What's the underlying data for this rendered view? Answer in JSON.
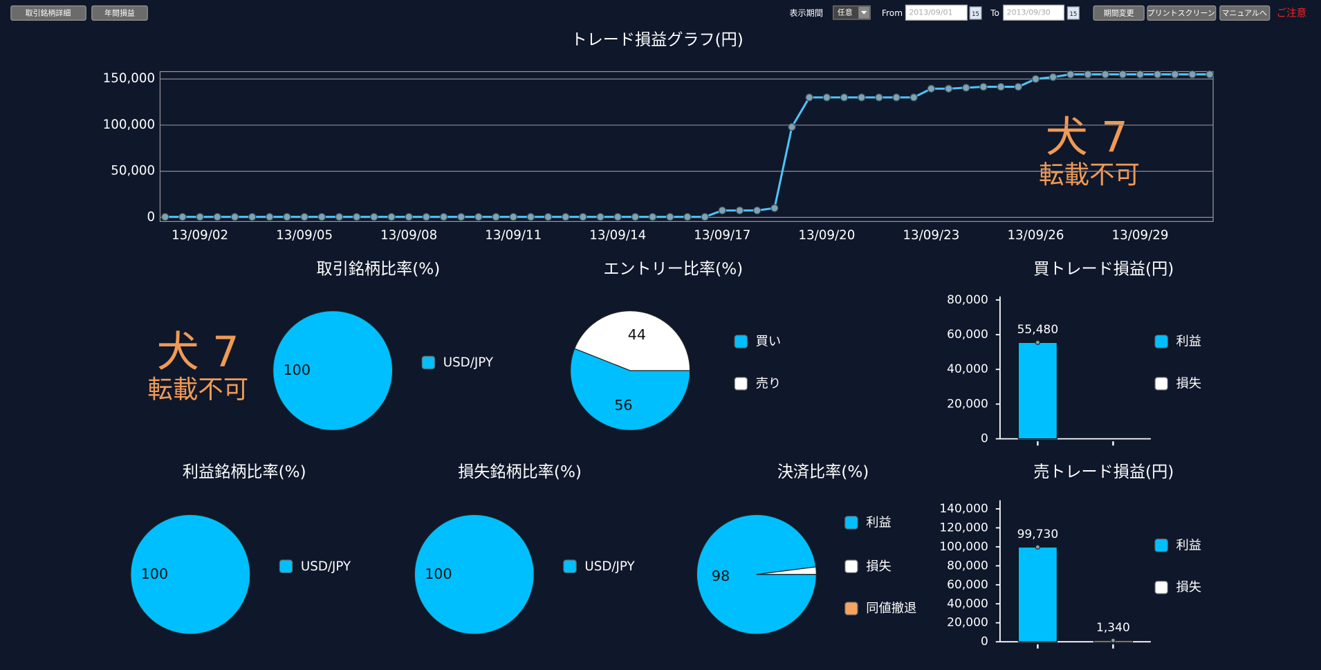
{
  "toolbar": {
    "buttons_left": [
      "取引銘柄詳細",
      "年間損益"
    ],
    "period_label": "表示期間",
    "period_select": "任意",
    "from_label": "From",
    "from_date": "2013/09/01",
    "to_label": "To",
    "to_date": "2013/09/30",
    "calendar_day": "15",
    "buttons_right": [
      "期間変更",
      "プリントスクリーン",
      "マニュアルへ"
    ],
    "notice": "ご注意"
  },
  "watermark": {
    "mark": "犬 7",
    "text": "転載不可"
  },
  "chart_data": [
    {
      "type": "line",
      "title": "トレード損益グラフ(円)",
      "categories": [
        null,
        null,
        "13/09/02",
        null,
        null,
        null,
        null,
        null,
        "13/09/05",
        null,
        null,
        null,
        null,
        null,
        "13/09/08",
        null,
        null,
        null,
        null,
        null,
        "13/09/11",
        null,
        null,
        null,
        null,
        null,
        "13/09/14",
        null,
        null,
        null,
        null,
        null,
        "13/09/17",
        null,
        null,
        null,
        null,
        null,
        "13/09/20",
        null,
        null,
        null,
        null,
        null,
        "13/09/23",
        null,
        null,
        null,
        null,
        null,
        "13/09/26",
        null,
        null,
        null,
        null,
        null,
        "13/09/29",
        null,
        null,
        null,
        null
      ],
      "values": [
        500,
        500,
        500,
        500,
        500,
        500,
        500,
        500,
        500,
        500,
        500,
        500,
        500,
        500,
        500,
        500,
        500,
        500,
        500,
        500,
        500,
        500,
        500,
        500,
        500,
        500,
        500,
        500,
        500,
        500,
        500,
        500,
        7500,
        7500,
        7500,
        10000,
        98000,
        130000,
        130000,
        130000,
        130000,
        130000,
        130000,
        130000,
        139500,
        139500,
        140500,
        141500,
        141500,
        141500,
        150000,
        152000,
        155000,
        155000,
        155000,
        155000,
        155000,
        155000,
        155000,
        155000,
        155000
      ],
      "color": "#4fc3f7",
      "ylim": [
        -4500,
        158000
      ],
      "yticks": [
        0,
        {
          "value": 50000,
          "label": "50,000"
        },
        {
          "value": 100000,
          "label": "100,000"
        },
        {
          "value": 150000,
          "label": "150,000"
        }
      ],
      "grid": true
    },
    {
      "type": "pie",
      "title": "取引銘柄比率(%)",
      "categories": [
        "USD/JPY"
      ],
      "values": [
        100
      ],
      "colors": [
        "#00bfff"
      ]
    },
    {
      "type": "pie",
      "title": "エントリー比率(%)",
      "categories": [
        "買い",
        "売り"
      ],
      "values": [
        56,
        44
      ],
      "colors": [
        "#00bfff",
        "#ffffff"
      ]
    },
    {
      "type": "bar",
      "title": "買トレード損益(円)",
      "categories": [
        null,
        null
      ],
      "series": [
        {
          "name": "利益",
          "color": "#00bfff",
          "values": [
            55480,
            null
          ],
          "value_labels": [
            "55,480",
            null
          ]
        },
        {
          "name": "損失",
          "color": "#ffffff",
          "values": [
            null,
            null
          ]
        }
      ],
      "ylim": [
        0,
        82000
      ],
      "yticks": [
        0,
        {
          "value": 20000,
          "label": "20,000"
        },
        {
          "value": 40000,
          "label": "40,000"
        },
        {
          "value": 60000,
          "label": "60,000"
        },
        {
          "value": 80000,
          "label": "80,000"
        }
      ]
    },
    {
      "type": "pie",
      "title": "利益銘柄比率(%)",
      "categories": [
        "USD/JPY"
      ],
      "values": [
        100
      ],
      "colors": [
        "#00bfff"
      ]
    },
    {
      "type": "pie",
      "title": "損失銘柄比率(%)",
      "categories": [
        "USD/JPY"
      ],
      "values": [
        100
      ],
      "colors": [
        "#00bfff"
      ]
    },
    {
      "type": "pie",
      "title": "決済比率(%)",
      "categories": [
        "利益",
        "損失",
        "同値撤退"
      ],
      "values": [
        98,
        2,
        0
      ],
      "colors": [
        "#00bfff",
        "#ffffff",
        "#f4a460"
      ]
    },
    {
      "type": "bar",
      "title": "売トレード損益(円)",
      "categories": [
        null,
        null
      ],
      "series": [
        {
          "name": "利益",
          "color": "#00bfff",
          "values": [
            99730,
            null
          ],
          "value_labels": [
            "99,730",
            null
          ]
        },
        {
          "name": "損失",
          "color": "#ffffff",
          "values": [
            null,
            1340
          ],
          "value_labels": [
            null,
            "1,340"
          ]
        }
      ],
      "ylim": [
        0,
        149000
      ],
      "yticks": [
        0,
        {
          "value": 20000,
          "label": "20,000"
        },
        {
          "value": 40000,
          "label": "40,000"
        },
        {
          "value": 60000,
          "label": "60,000"
        },
        {
          "value": 80000,
          "label": "80,000"
        },
        {
          "value": 100000,
          "label": "100,000"
        },
        {
          "value": 120000,
          "label": "120,000"
        },
        {
          "value": 140000,
          "label": "140,000"
        }
      ]
    }
  ]
}
